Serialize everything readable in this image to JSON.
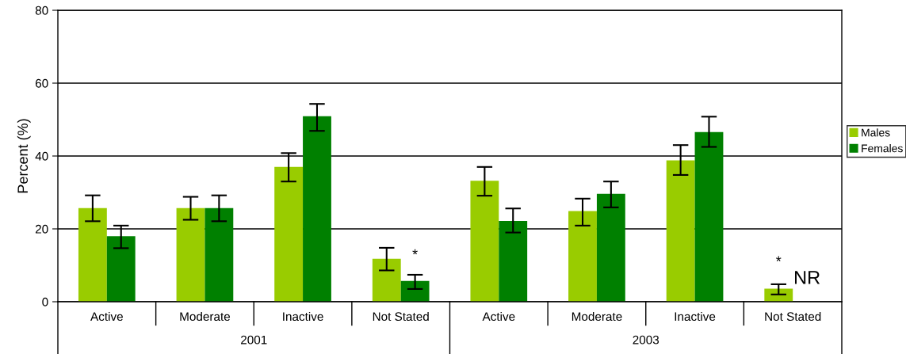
{
  "chart_data": {
    "type": "bar",
    "ylabel": "Percent (%)",
    "categories": [
      "Active",
      "Moderate",
      "Inactive",
      "Not Stated",
      "Active",
      "Moderate",
      "Inactive",
      "Not Stated"
    ],
    "series": [
      {
        "name": "Males",
        "color": "#99cc00",
        "values": [
          25.7,
          25.7,
          37.0,
          11.8,
          33.2,
          24.9,
          38.8,
          3.6
        ],
        "errors": [
          [
            22.1,
            29.2
          ],
          [
            22.5,
            28.8
          ],
          [
            33.0,
            40.8
          ],
          [
            8.6,
            14.8
          ],
          [
            29.1,
            37.0
          ],
          [
            20.9,
            28.3
          ],
          [
            34.8,
            43.0
          ],
          [
            2.0,
            4.8
          ]
        ]
      },
      {
        "name": "Females",
        "color": "#008000",
        "values": [
          18.0,
          25.7,
          50.9,
          5.7,
          22.2,
          29.6,
          46.6,
          null
        ],
        "errors": [
          [
            14.7,
            20.9
          ],
          [
            22.1,
            29.2
          ],
          [
            46.9,
            54.3
          ],
          [
            3.5,
            7.4
          ],
          [
            19.0,
            25.6
          ],
          [
            25.9,
            33.0
          ],
          [
            42.5,
            50.8
          ],
          null
        ]
      }
    ],
    "annotations": [
      "2001",
      "2003",
      {
        "text": "*",
        "x": "Not Stated",
        "y": 12.7
      },
      "*",
      "NR"
    ],
    "ylim": [
      0,
      80
    ],
    "yticks": [
      0,
      20,
      40,
      60,
      80
    ],
    "grid": "y",
    "legend": "right"
  }
}
